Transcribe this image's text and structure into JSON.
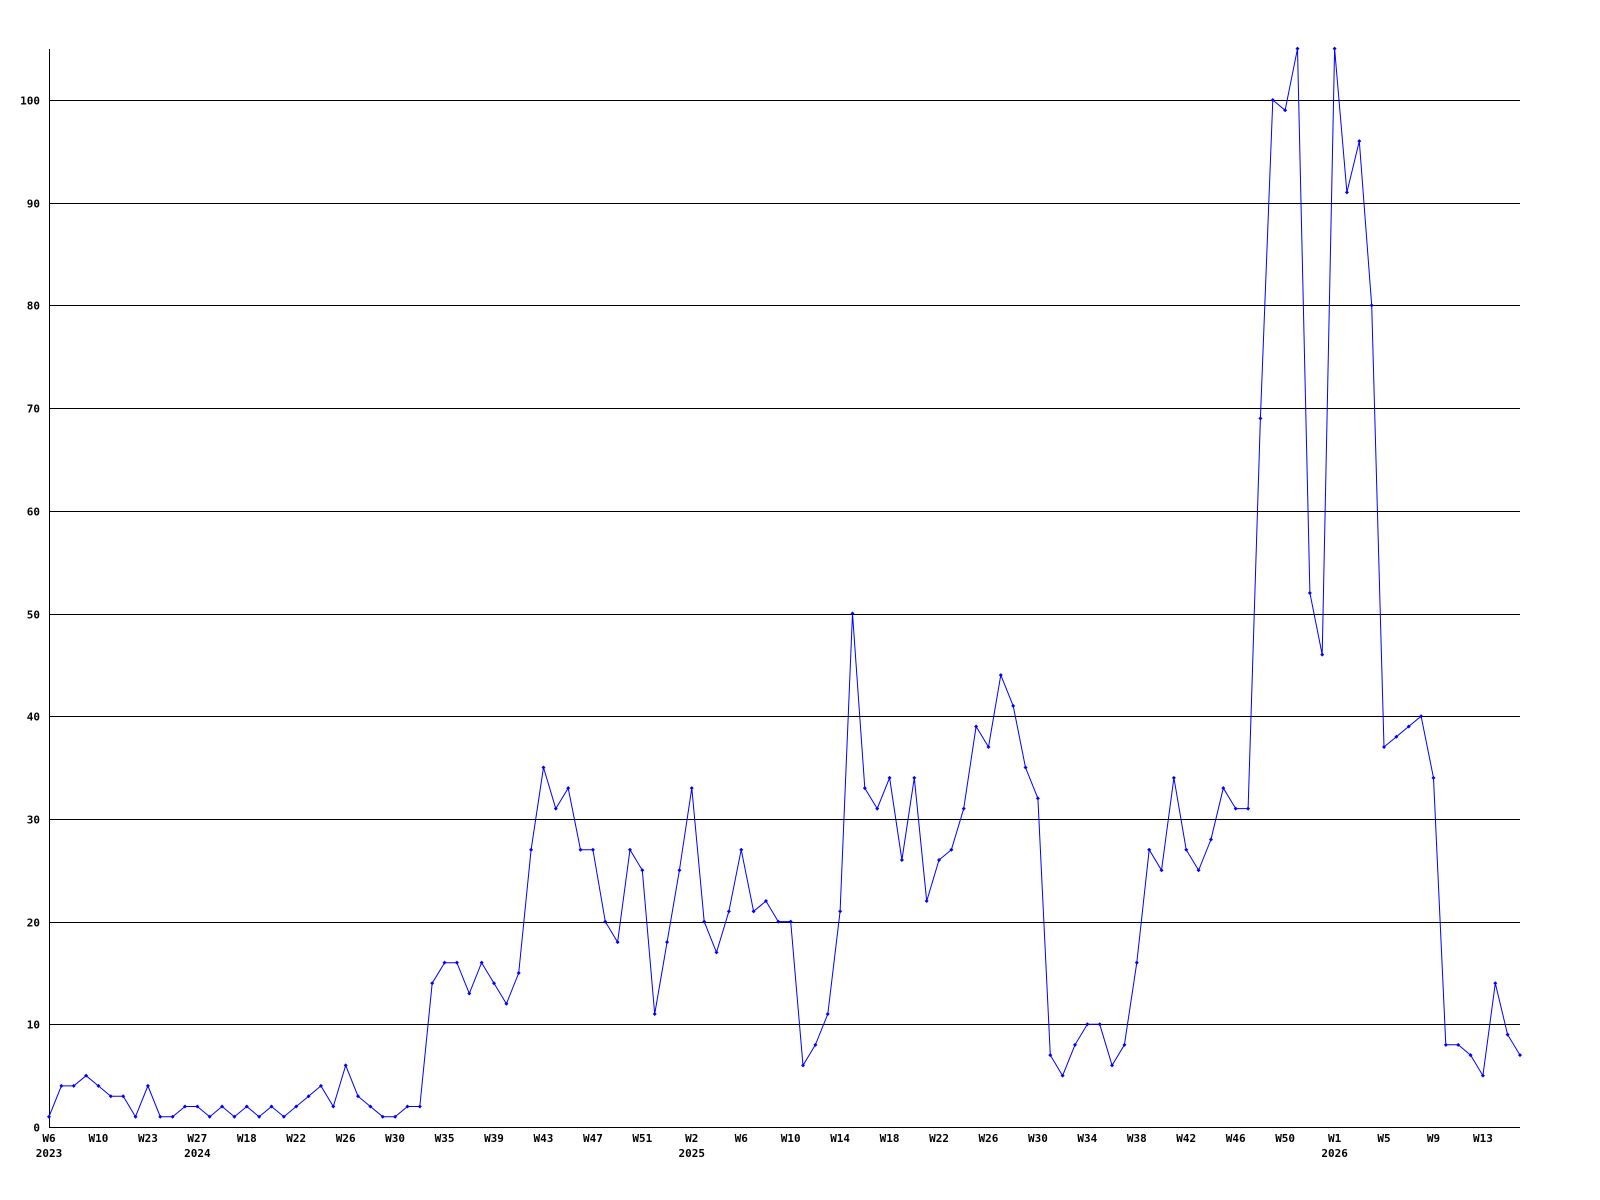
{
  "chart_data": {
    "type": "line",
    "title": "",
    "xlabel": "",
    "ylabel": "",
    "ylim": [
      0,
      105
    ],
    "yticks": [
      0,
      10,
      20,
      30,
      40,
      50,
      60,
      70,
      80,
      90,
      100
    ],
    "grid": "horizontal",
    "legend": "none",
    "line_color": "#0000ff",
    "grid_color": "#000000",
    "x_tick_every": 4,
    "x_tick_labels": [
      "W6",
      "W10",
      "W23",
      "W27",
      "W18",
      "W22",
      "W26",
      "W30",
      "W35",
      "W39",
      "W43",
      "W47",
      "W51",
      "W2",
      "W6",
      "W10",
      "W14",
      "W18",
      "W22",
      "W26",
      "W30",
      "W34",
      "W38",
      "W42",
      "W46",
      "W50",
      "W1",
      "W5",
      "W9",
      "W13"
    ],
    "year_labels": [
      {
        "label": "2023",
        "index": 0
      },
      {
        "label": "2024",
        "index": 12
      },
      {
        "label": "2025",
        "index": 52
      },
      {
        "label": "2026",
        "index": 104
      }
    ],
    "values": [
      1,
      4,
      4,
      5,
      4,
      3,
      3,
      1,
      4,
      1,
      1,
      2,
      2,
      1,
      2,
      1,
      2,
      1,
      2,
      1,
      2,
      3,
      4,
      2,
      6,
      3,
      2,
      1,
      1,
      2,
      2,
      14,
      16,
      16,
      13,
      16,
      14,
      12,
      15,
      27,
      35,
      31,
      33,
      27,
      27,
      20,
      18,
      27,
      25,
      11,
      18,
      25,
      33,
      20,
      17,
      21,
      27,
      21,
      22,
      20,
      20,
      6,
      8,
      11,
      21,
      50,
      33,
      31,
      34,
      26,
      34,
      22,
      26,
      27,
      31,
      39,
      37,
      44,
      41,
      35,
      32,
      7,
      5,
      8,
      10,
      10,
      6,
      8,
      16,
      27,
      25,
      34,
      27,
      25,
      28,
      33,
      31,
      31,
      69,
      100,
      99,
      105,
      52,
      46,
      105,
      91,
      96,
      80,
      37,
      38,
      39,
      40,
      34,
      8,
      8,
      7,
      5,
      14,
      9,
      7
    ]
  }
}
